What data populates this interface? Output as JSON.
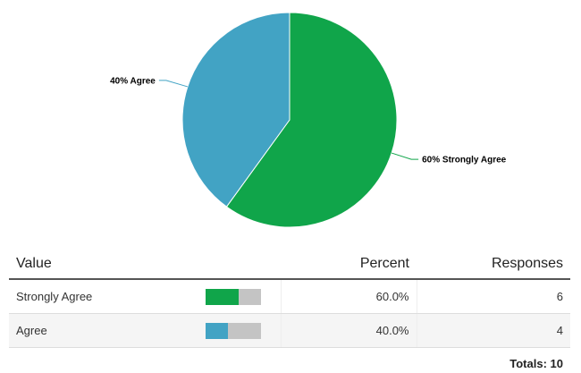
{
  "chart_data": {
    "type": "pie",
    "slices": [
      {
        "label": "Strongly Agree",
        "display": "60% Strongly Agree",
        "percent": 60,
        "color": "#10a54a"
      },
      {
        "label": "Agree",
        "display": "40% Agree",
        "percent": 40,
        "color": "#42a3c4"
      }
    ]
  },
  "table": {
    "headers": {
      "value": "Value",
      "percent": "Percent",
      "responses": "Responses"
    },
    "rows": [
      {
        "value": "Strongly Agree",
        "percent_text": "60.0%",
        "fraction": 0.6,
        "responses": "6",
        "color": "#10a54a"
      },
      {
        "value": "Agree",
        "percent_text": "40.0%",
        "fraction": 0.4,
        "responses": "4",
        "color": "#42a3c4"
      }
    ],
    "totals_label": "Totals:",
    "totals_value": "10"
  }
}
